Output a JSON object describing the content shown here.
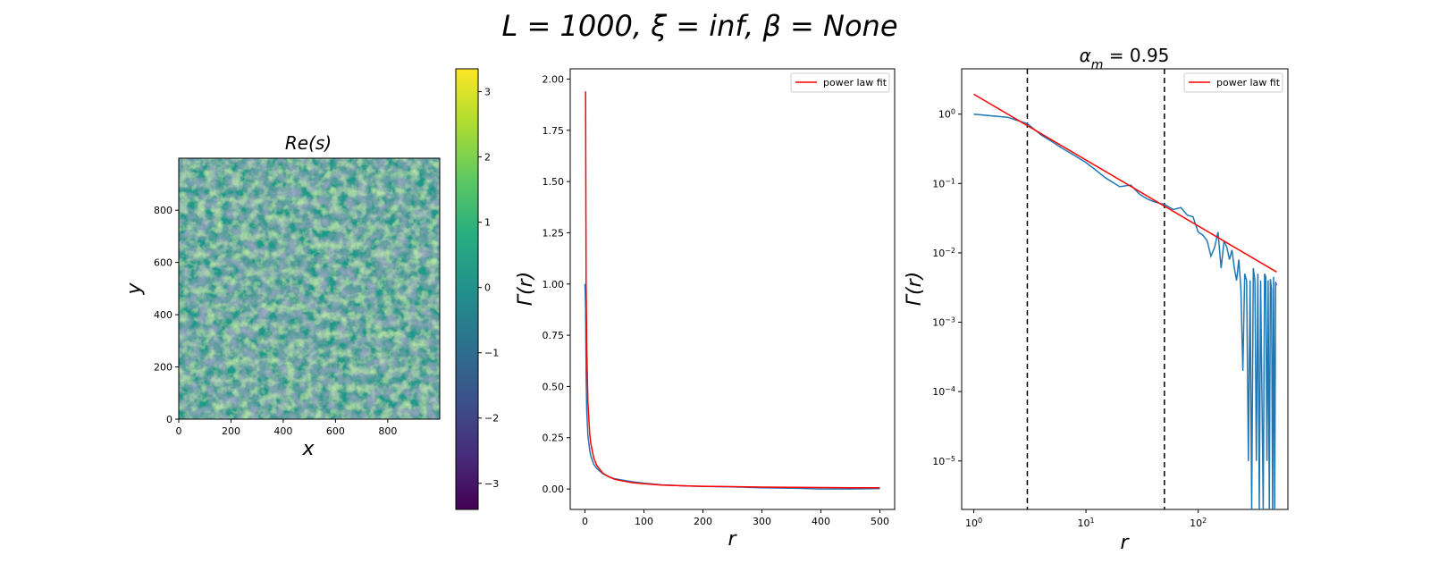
{
  "suptitle": "L = 1000, ξ = inf, β = None",
  "colors": {
    "series": "#1f77b4",
    "fit": "#ff0000",
    "vline": "#000000"
  },
  "chart_data": [
    {
      "type": "heatmap",
      "title": "Re(s)",
      "xlabel": "x",
      "ylabel": "y",
      "xlim": [
        0,
        999
      ],
      "ylim": [
        0,
        999
      ],
      "xticks": [
        "0",
        "200",
        "400",
        "600",
        "800"
      ],
      "yticks": [
        "0",
        "200",
        "400",
        "600",
        "800"
      ],
      "colormap": "viridis",
      "colorbar": {
        "range": [
          -3.4,
          3.35
        ],
        "ticks": [
          "−3",
          "−2",
          "−1",
          "0",
          "1",
          "2",
          "3"
        ]
      }
    },
    {
      "type": "line",
      "title": "",
      "xlabel": "r",
      "ylabel": "Γ(r)",
      "xlim": [
        -25,
        525
      ],
      "ylim": [
        -0.1,
        2.05
      ],
      "xticks": [
        "0",
        "100",
        "200",
        "300",
        "400",
        "500"
      ],
      "yticks": [
        "0.00",
        "0.25",
        "0.50",
        "0.75",
        "1.00",
        "1.25",
        "1.50",
        "1.75",
        "2.00"
      ],
      "legend": {
        "position": "top-right",
        "entries": [
          "power law fit"
        ]
      },
      "series": [
        {
          "x": [
            0,
            1,
            2,
            3,
            5,
            8,
            10,
            15,
            20,
            30,
            40,
            50,
            60,
            80,
            100,
            130,
            160,
            200,
            250,
            300,
            350,
            400,
            450,
            500
          ],
          "y": [
            1.0,
            0.9,
            0.55,
            0.38,
            0.26,
            0.19,
            0.16,
            0.12,
            0.1,
            0.075,
            0.06,
            0.05,
            0.045,
            0.035,
            0.028,
            0.02,
            0.016,
            0.012,
            0.01,
            0.006,
            0.004,
            0.0,
            0.0,
            0.002
          ]
        },
        {
          "name": "power law fit",
          "x": [
            1,
            2,
            3,
            5,
            8,
            10,
            15,
            20,
            30,
            40,
            50,
            60,
            80,
            100,
            130,
            160,
            200,
            250,
            300,
            350,
            400,
            450,
            500
          ],
          "y": [
            1.94,
            1.0,
            0.68,
            0.42,
            0.27,
            0.22,
            0.15,
            0.115,
            0.078,
            0.06,
            0.048,
            0.041,
            0.031,
            0.025,
            0.019,
            0.016,
            0.013,
            0.011,
            0.009,
            0.008,
            0.007,
            0.006,
            0.0055
          ]
        }
      ]
    },
    {
      "type": "line",
      "title": "α_m = 0.95",
      "title_main": "α",
      "title_sub": "m",
      "title_rest": " = 0.95",
      "xlabel": "r",
      "ylabel": "Γ(r)",
      "xscale": "log",
      "yscale": "log",
      "xlim": [
        0.78,
        630
      ],
      "ylim": [
        2e-06,
        4.5
      ],
      "xticks": [
        {
          "v": 1,
          "b": "10",
          "e": "0"
        },
        {
          "v": 10,
          "b": "10",
          "e": "1"
        },
        {
          "v": 100,
          "b": "10",
          "e": "2"
        }
      ],
      "yticks": [
        {
          "v": 1,
          "b": "10",
          "e": "0"
        },
        {
          "v": 0.1,
          "b": "10",
          "e": "−1"
        },
        {
          "v": 0.01,
          "b": "10",
          "e": "−2"
        },
        {
          "v": 0.001,
          "b": "10",
          "e": "−3"
        },
        {
          "v": 0.0001,
          "b": "10",
          "e": "−4"
        },
        {
          "v": 1e-05,
          "b": "10",
          "e": "−5"
        }
      ],
      "vlines": [
        3,
        50
      ],
      "legend": {
        "position": "top-right",
        "entries": [
          "power law fit"
        ]
      },
      "series": [
        {
          "x": [
            1,
            2,
            3,
            4,
            5,
            6,
            8,
            10,
            12,
            15,
            20,
            25,
            30,
            35,
            40,
            45,
            50,
            60,
            70,
            80,
            90,
            100,
            110,
            120,
            130,
            140,
            150,
            160,
            170,
            180,
            190,
            200,
            210,
            220,
            230,
            240,
            250,
            260,
            270,
            280,
            290,
            300,
            310,
            320,
            330,
            340,
            350,
            360,
            370,
            380,
            390,
            400,
            410,
            420,
            430,
            440,
            450,
            460,
            470,
            480,
            490,
            500
          ],
          "y": [
            1.0,
            0.9,
            0.73,
            0.5,
            0.4,
            0.33,
            0.25,
            0.2,
            0.16,
            0.12,
            0.09,
            0.095,
            0.07,
            0.06,
            0.055,
            0.052,
            0.05,
            0.042,
            0.045,
            0.035,
            0.033,
            0.02,
            0.018,
            0.015,
            0.009,
            0.012,
            0.02,
            0.006,
            0.015,
            0.012,
            0.008,
            0.011,
            0.006,
            0.004,
            0.008,
            0.003,
            0.0002,
            0.005,
            0.004,
            1e-05,
            0.004,
            1e-07,
            0.006,
            0.004,
            1e-05,
            0.005,
            1e-07,
            0.004,
            8e-05,
            1e-07,
            0.005,
            0.0045,
            1e-05,
            0.004,
            1e-07,
            0.0042,
            0.003,
            1e-07,
            0.0045,
            1e-07,
            0.0038,
            0.0034
          ]
        },
        {
          "name": "power law fit",
          "x": [
            1,
            500
          ],
          "y": [
            1.94,
            0.0053
          ]
        }
      ]
    }
  ]
}
